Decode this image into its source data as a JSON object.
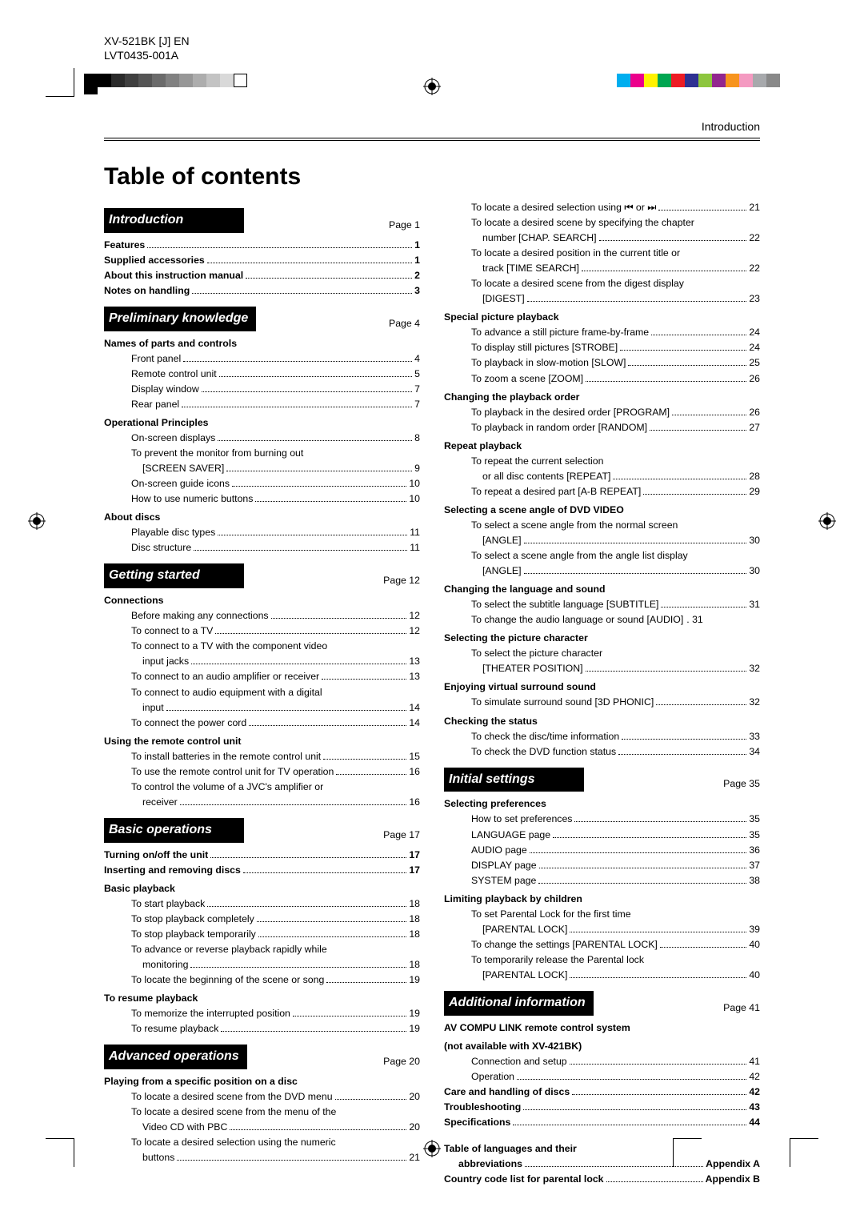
{
  "header": {
    "model": "XV-521BK [J] EN",
    "doc": "LVT0435-001A"
  },
  "top_chapter": "Introduction",
  "toc_title": "Table of contents",
  "left_chips": [
    "#000000",
    "#000000",
    "#2a2a2a",
    "#3f3f3f",
    "#555555",
    "#6b6b6b",
    "#818181",
    "#979797",
    "#adadad",
    "#c3c3c3",
    "#d9d9d9",
    "#ffffff"
  ],
  "right_chips": [
    "#00aeef",
    "#ec008c",
    "#fff200",
    "#00a651",
    "#ed1c24",
    "#2e3192",
    "#8dc63e",
    "#92278f",
    "#f7941e",
    "#f49ac1",
    "#a7a9ac",
    "#898989"
  ],
  "sections": [
    {
      "title": "Introduction",
      "page": "Page 1",
      "bold_rows": [
        {
          "label": "Features",
          "pg": "1"
        },
        {
          "label": "Supplied accessories",
          "pg": "1"
        },
        {
          "label": "About this instruction manual",
          "pg": "2"
        },
        {
          "label": "Notes on handling",
          "pg": "3"
        }
      ]
    },
    {
      "title": "Preliminary knowledge",
      "page": "Page 4",
      "groups": [
        {
          "h": "Names of parts and controls",
          "items": [
            {
              "label": "Front panel",
              "pg": "4"
            },
            {
              "label": "Remote control unit",
              "pg": "5"
            },
            {
              "label": "Display window",
              "pg": "7"
            },
            {
              "label": "Rear panel",
              "pg": "7"
            }
          ]
        },
        {
          "h": "Operational Principles",
          "items": [
            {
              "label": "On-screen displays",
              "pg": "8"
            },
            {
              "label": "To prevent the monitor from burning out",
              "cont": "[SCREEN SAVER]",
              "pg": "9"
            },
            {
              "label": "On-screen guide icons",
              "pg": "10"
            },
            {
              "label": "How to use numeric buttons",
              "pg": "10"
            }
          ]
        },
        {
          "h": "About discs",
          "items": [
            {
              "label": "Playable disc types",
              "pg": "11"
            },
            {
              "label": "Disc structure",
              "pg": "11"
            }
          ]
        }
      ]
    },
    {
      "title": "Getting started",
      "page": "Page 12",
      "groups": [
        {
          "h": "Connections",
          "items": [
            {
              "label": "Before making any connections",
              "pg": "12"
            },
            {
              "label": "To connect to a TV",
              "pg": "12"
            },
            {
              "label": "To connect to a TV with the component video",
              "cont": "input jacks",
              "pg": "13"
            },
            {
              "label": "To connect to an audio amplifier or receiver",
              "pg": "13"
            },
            {
              "label": "To connect to audio equipment with a digital",
              "cont": "input",
              "pg": "14"
            },
            {
              "label": "To connect the power cord",
              "pg": "14"
            }
          ]
        },
        {
          "h": "Using the remote control unit",
          "items": [
            {
              "label": "To install batteries in the remote control unit",
              "pg": "15"
            },
            {
              "label": "To use the remote control unit for TV operation",
              "pg": "16"
            },
            {
              "label": "To control the volume of a JVC's amplifier or",
              "cont": "receiver",
              "pg": "16"
            }
          ]
        }
      ]
    },
    {
      "title": "Basic operations",
      "page": "Page 17",
      "bold_rows": [
        {
          "label": "Turning on/off the unit",
          "pg": "17"
        },
        {
          "label": "Inserting and removing discs",
          "pg": "17"
        }
      ],
      "groups": [
        {
          "h": "Basic playback",
          "items": [
            {
              "label": "To start playback",
              "pg": "18"
            },
            {
              "label": "To stop playback completely",
              "pg": "18"
            },
            {
              "label": "To stop playback temporarily",
              "pg": "18"
            },
            {
              "label": "To advance or reverse playback rapidly while",
              "cont": "monitoring",
              "pg": "18"
            },
            {
              "label": "To locate the beginning of the scene or song",
              "pg": "19"
            }
          ]
        },
        {
          "h": "To resume playback",
          "items": [
            {
              "label": "To memorize the interrupted position",
              "pg": "19"
            },
            {
              "label": "To resume playback",
              "pg": "19"
            }
          ]
        }
      ]
    },
    {
      "title": "Advanced operations",
      "page": "Page 20",
      "groups": [
        {
          "h": "Playing from a specific position on a disc",
          "items": [
            {
              "label": "To locate a desired scene from the DVD menu",
              "pg": "20"
            },
            {
              "label": "To locate a desired scene from the menu of the",
              "cont": "Video CD with PBC",
              "pg": "20"
            },
            {
              "label": "To locate a desired selection using the numeric",
              "cont": "buttons",
              "pg": "21"
            }
          ]
        }
      ]
    }
  ],
  "right_top_items": [
    {
      "label": "To locate a desired selection using ⏮ or ⏭",
      "pg": "21"
    },
    {
      "label": "To locate a desired scene by specifying the chapter",
      "cont": "number [CHAP. SEARCH]",
      "pg": "22"
    },
    {
      "label": "To locate a desired position in the current title or",
      "cont": "track [TIME SEARCH]",
      "pg": "22"
    },
    {
      "label": "To locate a desired scene from the digest display",
      "cont": "[DIGEST]",
      "pg": "23"
    }
  ],
  "right_groups": [
    {
      "h": "Special picture playback",
      "items": [
        {
          "label": "To advance a still picture frame-by-frame",
          "pg": "24"
        },
        {
          "label": "To display still pictures [STROBE]",
          "pg": "24"
        },
        {
          "label": "To playback in slow-motion [SLOW]",
          "pg": "25"
        },
        {
          "label": "To zoom a scene [ZOOM]",
          "pg": "26"
        }
      ]
    },
    {
      "h": "Changing the playback order",
      "items": [
        {
          "label": "To playback in the desired order [PROGRAM]",
          "pg": "26"
        },
        {
          "label": "To playback in random order [RANDOM]",
          "pg": "27"
        }
      ]
    },
    {
      "h": "Repeat playback",
      "items": [
        {
          "label": "To repeat the current selection",
          "cont": "or all disc contents [REPEAT]",
          "pg": "28"
        },
        {
          "label": "To repeat a desired part [A-B REPEAT]",
          "pg": "29"
        }
      ]
    },
    {
      "h": "Selecting a scene angle of DVD VIDEO",
      "items": [
        {
          "label": "To select a scene angle from the normal screen",
          "cont": "[ANGLE]",
          "pg": "30"
        },
        {
          "label": "To select a scene angle from the angle list display",
          "cont": "[ANGLE]",
          "pg": "30"
        }
      ]
    },
    {
      "h": "Changing the language and sound",
      "items": [
        {
          "label": "To select the subtitle language [SUBTITLE]",
          "pg": "31"
        },
        {
          "label": "To change the audio language or sound [AUDIO]",
          "pg": "31",
          "tight": true
        }
      ]
    },
    {
      "h": "Selecting the picture character",
      "items": [
        {
          "label": "To select the picture character",
          "cont": "[THEATER POSITION]",
          "pg": "32"
        }
      ]
    },
    {
      "h": "Enjoying virtual surround sound",
      "items": [
        {
          "label": "To simulate surround sound [3D PHONIC]",
          "pg": "32"
        }
      ]
    },
    {
      "h": "Checking the status",
      "items": [
        {
          "label": "To check the disc/time information",
          "pg": "33"
        },
        {
          "label": "To check the DVD function status",
          "pg": "34"
        }
      ]
    }
  ],
  "right_sections": [
    {
      "title": "Initial settings",
      "page": "Page 35",
      "groups": [
        {
          "h": "Selecting preferences",
          "items": [
            {
              "label": "How to set preferences",
              "pg": "35"
            },
            {
              "label": "LANGUAGE page",
              "pg": "35"
            },
            {
              "label": "AUDIO page",
              "pg": "36"
            },
            {
              "label": "DISPLAY page",
              "pg": "37"
            },
            {
              "label": "SYSTEM page",
              "pg": "38"
            }
          ]
        },
        {
          "h": "Limiting playback by children",
          "items": [
            {
              "label": "To set Parental Lock for the first time",
              "cont": "[PARENTAL LOCK]",
              "pg": "39"
            },
            {
              "label": "To change the settings [PARENTAL LOCK]",
              "pg": "40"
            },
            {
              "label": "To temporarily release the Parental lock",
              "cont": "[PARENTAL LOCK]",
              "pg": "40"
            }
          ]
        }
      ]
    },
    {
      "title": "Additional information",
      "page": "Page 41",
      "groups": [
        {
          "h": "AV COMPU LINK remote control system",
          "h2": "(not available with XV-421BK)",
          "items": [
            {
              "label": "Connection and setup",
              "pg": "41"
            },
            {
              "label": "Operation",
              "pg": "42"
            }
          ]
        }
      ],
      "bold_rows": [
        {
          "label": "Care and handling of discs",
          "pg": "42"
        },
        {
          "label": "Troubleshooting",
          "pg": "43"
        },
        {
          "label": "Specifications",
          "pg": "44"
        }
      ],
      "appendix": [
        {
          "l1": "Table of languages and their",
          "l2": "abbreviations",
          "pg": "Appendix A"
        },
        {
          "l1": "Country code list for parental lock",
          "pg": "Appendix B"
        }
      ]
    }
  ]
}
